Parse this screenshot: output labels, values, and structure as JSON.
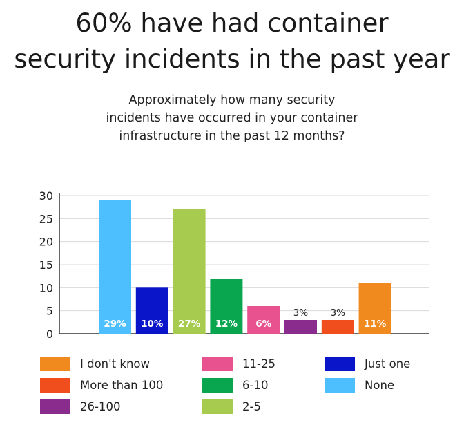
{
  "title_line1": "60% have had container",
  "title_line2": "security incidents in the past year",
  "subtitle_line1": "Approximately how many security",
  "subtitle_line2": "incidents have occurred in your container",
  "subtitle_line3": "infrastructure in the past 12 months?",
  "chart_data": {
    "type": "bar",
    "categories": [
      "None",
      "Just one",
      "2-5",
      "6-10",
      "11-25",
      "26-100",
      "More than 100",
      "I don't know"
    ],
    "values": [
      29,
      10,
      27,
      12,
      6,
      3,
      3,
      11
    ],
    "data_labels": [
      "29%",
      "10%",
      "27%",
      "12%",
      "6%",
      "3%",
      "3%",
      "11%"
    ],
    "colors": [
      "#4dbfff",
      "#0a14c8",
      "#a6cb4e",
      "#0aa64f",
      "#e8528f",
      "#8a2c8e",
      "#f04e1c",
      "#f08a1e"
    ],
    "ylim": [
      0,
      30
    ],
    "yticks": [
      "0",
      "5",
      "10",
      "15",
      "20",
      "25",
      "30"
    ],
    "grid": true,
    "legend_position": "bottom"
  },
  "legend": {
    "col1": [
      {
        "label": "I don't know",
        "color": "#f08a1e"
      },
      {
        "label": "More than 100",
        "color": "#f04e1c"
      },
      {
        "label": "26-100",
        "color": "#8a2c8e"
      }
    ],
    "col2": [
      {
        "label": "11-25",
        "color": "#e8528f"
      },
      {
        "label": "6-10",
        "color": "#0aa64f"
      },
      {
        "label": "2-5",
        "color": "#a6cb4e"
      }
    ],
    "col3": [
      {
        "label": "Just one",
        "color": "#0a14c8"
      },
      {
        "label": "None",
        "color": "#4dbfff"
      }
    ]
  }
}
